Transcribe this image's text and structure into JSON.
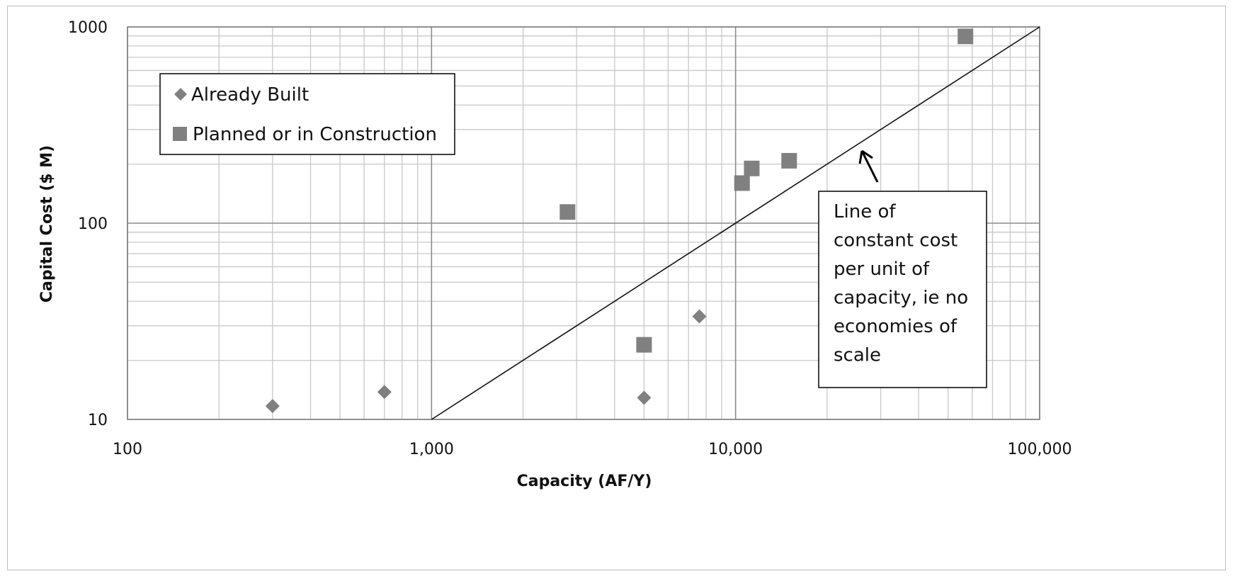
{
  "chart_data": {
    "type": "scatter",
    "title": "",
    "xlabel": "Capacity (AF/Y)",
    "ylabel": "Capital Cost ($ M)",
    "xscale": "log",
    "yscale": "log",
    "xlim": [
      100,
      100000
    ],
    "ylim": [
      10,
      1000
    ],
    "x_tick_labels": [
      "100",
      "1,000",
      "10,000",
      "100,000"
    ],
    "y_tick_labels": [
      "10",
      "100",
      "1000"
    ],
    "grid": true,
    "legend_position": "top-left",
    "series": [
      {
        "name": "Already Built",
        "marker": "diamond",
        "color": "#808080",
        "points": [
          {
            "x": 300,
            "y": 11.7
          },
          {
            "x": 700,
            "y": 13.8
          },
          {
            "x": 5000,
            "y": 12.9
          },
          {
            "x": 7600,
            "y": 33.5
          }
        ]
      },
      {
        "name": "Planned or in Construction",
        "marker": "square",
        "color": "#808080",
        "points": [
          {
            "x": 2800,
            "y": 114
          },
          {
            "x": 5000,
            "y": 24
          },
          {
            "x": 10500,
            "y": 160
          },
          {
            "x": 11300,
            "y": 190
          },
          {
            "x": 15000,
            "y": 208
          },
          {
            "x": 57000,
            "y": 895
          }
        ]
      }
    ],
    "reference_line": {
      "color": "#111111",
      "points": [
        {
          "x": 1000,
          "y": 10
        },
        {
          "x": 100000,
          "y": 1000
        }
      ]
    },
    "annotation": {
      "lines": [
        "Line of",
        "constant cost",
        "per unit of",
        "capacity, ie no",
        "economies of",
        "scale"
      ],
      "arrow_target": {
        "x": 25000,
        "y": 250
      }
    }
  }
}
